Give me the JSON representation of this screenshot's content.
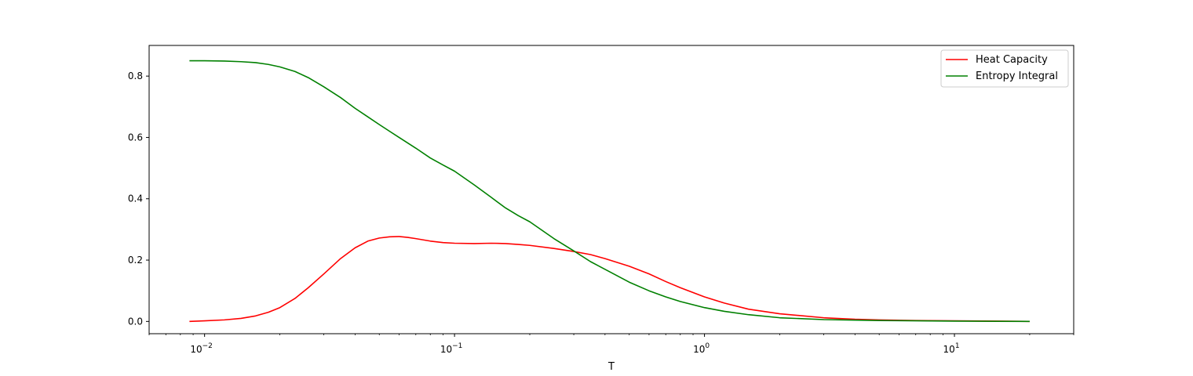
{
  "chart_data": {
    "type": "line",
    "title": "",
    "xlabel": "T",
    "ylabel": "",
    "xscale": "log",
    "xlim": [
      0.006,
      30
    ],
    "ylim": [
      -0.04,
      0.9
    ],
    "grid": false,
    "legend_position": "top-right",
    "x_ticks": [
      {
        "value": 0.01,
        "base": "10",
        "exp": "−2"
      },
      {
        "value": 0.1,
        "base": "10",
        "exp": "−1"
      },
      {
        "value": 1,
        "base": "10",
        "exp": "0"
      },
      {
        "value": 10,
        "base": "10",
        "exp": "1"
      }
    ],
    "y_ticks": [
      {
        "value": 0.0,
        "label": "0.0"
      },
      {
        "value": 0.2,
        "label": "0.2"
      },
      {
        "value": 0.4,
        "label": "0.4"
      },
      {
        "value": 0.6,
        "label": "0.6"
      },
      {
        "value": 0.8,
        "label": "0.8"
      }
    ],
    "series": [
      {
        "name": "Heat Capacity",
        "color": "#ff0000",
        "x": [
          0.0087,
          0.01,
          0.012,
          0.014,
          0.016,
          0.018,
          0.02,
          0.023,
          0.026,
          0.03,
          0.035,
          0.04,
          0.045,
          0.05,
          0.055,
          0.06,
          0.065,
          0.07,
          0.08,
          0.09,
          0.1,
          0.12,
          0.14,
          0.16,
          0.18,
          0.2,
          0.25,
          0.3,
          0.35,
          0.4,
          0.5,
          0.6,
          0.7,
          0.8,
          1.0,
          1.2,
          1.5,
          2.0,
          3.0,
          4.0,
          5.0,
          7.0,
          10.0,
          15.0,
          20.0
        ],
        "y": [
          0.0,
          0.002,
          0.005,
          0.01,
          0.018,
          0.03,
          0.045,
          0.075,
          0.11,
          0.155,
          0.205,
          0.24,
          0.262,
          0.272,
          0.276,
          0.277,
          0.274,
          0.27,
          0.262,
          0.257,
          0.255,
          0.254,
          0.255,
          0.254,
          0.251,
          0.248,
          0.238,
          0.228,
          0.218,
          0.205,
          0.18,
          0.155,
          0.13,
          0.11,
          0.08,
          0.06,
          0.04,
          0.025,
          0.012,
          0.007,
          0.005,
          0.003,
          0.002,
          0.001,
          0.0
        ]
      },
      {
        "name": "Entropy Integral",
        "color": "#008000",
        "x": [
          0.0087,
          0.01,
          0.012,
          0.014,
          0.016,
          0.018,
          0.02,
          0.023,
          0.026,
          0.03,
          0.035,
          0.04,
          0.045,
          0.05,
          0.055,
          0.06,
          0.07,
          0.08,
          0.09,
          0.1,
          0.12,
          0.14,
          0.16,
          0.18,
          0.2,
          0.25,
          0.3,
          0.35,
          0.4,
          0.5,
          0.6,
          0.7,
          0.8,
          1.0,
          1.2,
          1.5,
          2.0,
          3.0,
          5.0,
          10.0,
          20.0
        ],
        "y": [
          0.85,
          0.85,
          0.849,
          0.847,
          0.844,
          0.838,
          0.83,
          0.815,
          0.795,
          0.765,
          0.73,
          0.695,
          0.667,
          0.642,
          0.62,
          0.6,
          0.565,
          0.533,
          0.51,
          0.49,
          0.445,
          0.405,
          0.37,
          0.345,
          0.325,
          0.27,
          0.23,
          0.195,
          0.17,
          0.128,
          0.1,
          0.08,
          0.065,
          0.045,
          0.033,
          0.022,
          0.012,
          0.006,
          0.003,
          0.001,
          0.0
        ]
      }
    ]
  }
}
